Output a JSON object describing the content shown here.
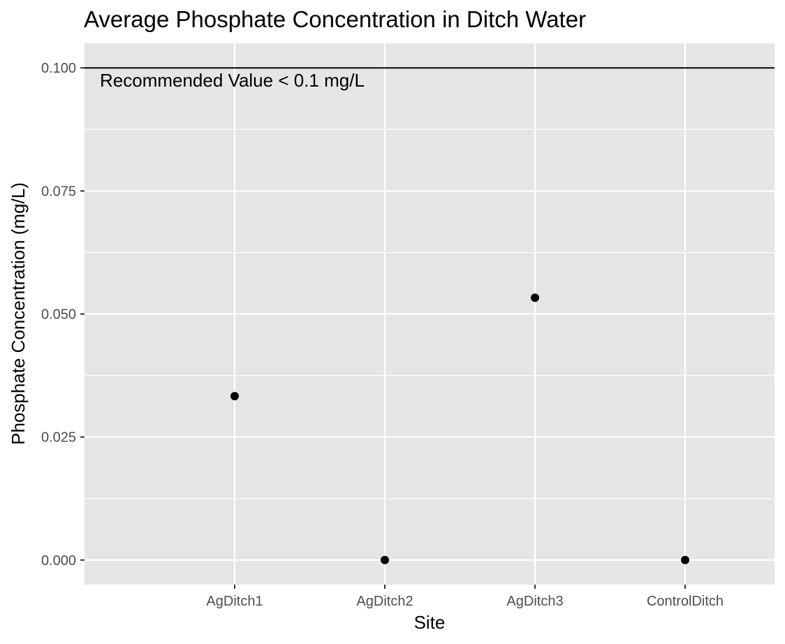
{
  "chart_data": {
    "type": "scatter",
    "title": "Average Phosphate Concentration in Ditch Water",
    "xlabel": "Site",
    "ylabel": "Phosphate Concentration (mg/L)",
    "categories": [
      "AgDitch1",
      "AgDitch2",
      "AgDitch3",
      "ControlDitch"
    ],
    "values": [
      0.0333,
      0.0,
      0.0533,
      0.0
    ],
    "ylim": [
      -0.005,
      0.105
    ],
    "yticks": [
      0.0,
      0.025,
      0.05,
      0.075,
      0.1
    ],
    "ytick_labels": [
      "0.000",
      "0.025",
      "0.050",
      "0.075",
      "0.100"
    ],
    "reference_line": {
      "y": 0.1,
      "label": "Recommended Value < 0.1 mg/L"
    },
    "grid": true,
    "colors": {
      "panel": "#e5e5e5",
      "grid": "#ffffff",
      "point": "#000000",
      "reference_line": "#000000",
      "tick_text": "#4d4d4d"
    }
  }
}
